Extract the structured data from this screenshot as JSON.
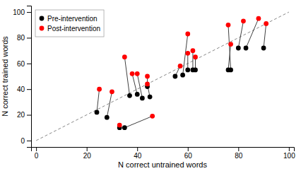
{
  "chart_data": {
    "type": "scatter",
    "xlabel": "N correct untrained words",
    "ylabel": "N correct trained words",
    "series": [
      {
        "name": "Pre-intervention",
        "color": "#000000",
        "marker": "circle",
        "x": [
          24,
          28,
          33,
          35,
          37,
          40,
          42,
          44,
          45,
          55,
          58,
          60,
          62,
          63,
          76,
          77,
          80,
          83,
          90
        ],
        "values": [
          22,
          18,
          10,
          10,
          35,
          36,
          33,
          42,
          34,
          50,
          51,
          55,
          55,
          55,
          55,
          55,
          72,
          72,
          72
        ]
      },
      {
        "name": "Post-intervention",
        "color": "#ff0000",
        "marker": "circle",
        "x": [
          25,
          30,
          33,
          46,
          35,
          38,
          40,
          44,
          44,
          57,
          60,
          60,
          62,
          63,
          77,
          76,
          82,
          88,
          91
        ],
        "values": [
          40,
          38,
          12,
          19,
          65,
          52,
          52,
          50,
          44,
          58,
          83,
          68,
          70,
          65,
          75,
          90,
          93,
          95,
          91
        ]
      }
    ],
    "connectors": {
      "color": "#404040"
    },
    "diagonal": {
      "x": [
        0,
        100
      ],
      "values": [
        0,
        100
      ],
      "color": "#888888",
      "line_style": "dashed"
    },
    "xlim": [
      -2,
      102
    ],
    "ylim": [
      -5,
      105
    ],
    "xticks": [
      0,
      20,
      40,
      60,
      80,
      100
    ],
    "yticks": [
      0,
      20,
      40,
      60,
      80,
      100
    ],
    "grid": false,
    "legend": "upper left"
  }
}
